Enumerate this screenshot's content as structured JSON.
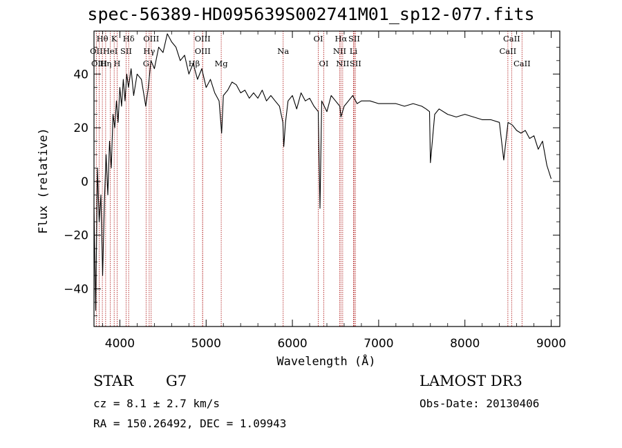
{
  "title": "spec-56389-HD095639S002741M01_sp12-077.fits",
  "info": {
    "class": "STAR",
    "subclass": "G7",
    "survey": "LAMOST DR3",
    "cz": "cz = 8.1 ± 2.7 km/s",
    "obs_date": "Obs-Date: 20130406",
    "radec": "RA = 150.26492, DEC =    1.09943"
  },
  "chart_data": {
    "type": "line",
    "title": "spec-56389-HD095639S002741M01_sp12-077.fits",
    "xlabel": "Wavelength (Å)",
    "ylabel": "Flux (relative)",
    "xlim": [
      3700,
      9100
    ],
    "ylim": [
      -54,
      56
    ],
    "xticks": [
      4000,
      5000,
      6000,
      7000,
      8000,
      9000
    ],
    "yticks": [
      -40,
      -20,
      0,
      20,
      40
    ],
    "series": [
      {
        "name": "spectrum",
        "x": [
          3700,
          3720,
          3740,
          3760,
          3780,
          3800,
          3820,
          3840,
          3860,
          3880,
          3900,
          3920,
          3940,
          3960,
          3980,
          4000,
          4020,
          4040,
          4060,
          4080,
          4100,
          4130,
          4160,
          4200,
          4250,
          4300,
          4330,
          4360,
          4400,
          4450,
          4500,
          4550,
          4600,
          4650,
          4700,
          4750,
          4800,
          4850,
          4900,
          4950,
          5000,
          5050,
          5100,
          5150,
          5180,
          5200,
          5250,
          5300,
          5350,
          5400,
          5450,
          5500,
          5550,
          5600,
          5650,
          5700,
          5750,
          5800,
          5850,
          5890,
          5900,
          5920,
          5950,
          6000,
          6050,
          6100,
          6150,
          6200,
          6250,
          6300,
          6320,
          6340,
          6400,
          6450,
          6500,
          6550,
          6563,
          6600,
          6650,
          6700,
          6750,
          6800,
          6900,
          7000,
          7100,
          7200,
          7300,
          7400,
          7500,
          7550,
          7590,
          7600,
          7650,
          7700,
          7800,
          7900,
          8000,
          8100,
          8200,
          8300,
          8400,
          8450,
          8500,
          8550,
          8600,
          8650,
          8700,
          8750,
          8800,
          8850,
          8900,
          8950,
          9000
        ],
        "y": [
          -10,
          -48,
          5,
          -15,
          -5,
          -35,
          -8,
          10,
          -5,
          15,
          5,
          25,
          20,
          30,
          22,
          35,
          28,
          38,
          30,
          40,
          35,
          42,
          32,
          40,
          38,
          28,
          35,
          45,
          42,
          50,
          48,
          55,
          52,
          50,
          45,
          47,
          40,
          44,
          38,
          42,
          35,
          38,
          33,
          30,
          18,
          32,
          34,
          37,
          36,
          33,
          34,
          31,
          33,
          31,
          34,
          30,
          32,
          30,
          28,
          22,
          13,
          22,
          30,
          32,
          27,
          33,
          30,
          31,
          28,
          26,
          -10,
          30,
          26,
          32,
          30,
          28,
          24,
          28,
          30,
          32,
          29,
          30,
          30,
          29,
          29,
          29,
          28,
          29,
          28,
          27,
          26,
          7,
          25,
          27,
          25,
          24,
          25,
          24,
          23,
          23,
          22,
          8,
          22,
          21,
          19,
          18,
          19,
          16,
          17,
          12,
          15,
          6,
          1
        ]
      }
    ],
    "lines": [
      {
        "label": "Hθ",
        "wave": 3797,
        "row": 0
      },
      {
        "label": "OII",
        "wave": 3727,
        "row": 1
      },
      {
        "label": "OIII",
        "wave": 3760,
        "row": 2
      },
      {
        "label": "Hη",
        "wave": 3835,
        "row": 2
      },
      {
        "label": "HeI",
        "wave": 3889,
        "row": 1
      },
      {
        "label": "K",
        "wave": 3934,
        "row": 0
      },
      {
        "label": "H",
        "wave": 3968,
        "row": 2
      },
      {
        "label": "SII",
        "wave": 4072,
        "row": 1
      },
      {
        "label": "Hδ",
        "wave": 4102,
        "row": 0
      },
      {
        "label": "OIII",
        "wave": 4363,
        "row": 0
      },
      {
        "label": "Hγ",
        "wave": 4340,
        "row": 1
      },
      {
        "label": "G",
        "wave": 4304,
        "row": 2
      },
      {
        "label": "OIII",
        "wave": 4959,
        "row": 0
      },
      {
        "label": "OIII",
        "wave": 4960,
        "row": 1
      },
      {
        "label": "Hβ",
        "wave": 4861,
        "row": 2
      },
      {
        "label": "Mg",
        "wave": 5175,
        "row": 2
      },
      {
        "label": "Na",
        "wave": 5893,
        "row": 1
      },
      {
        "label": "OI",
        "wave": 6300,
        "row": 0
      },
      {
        "label": "OI",
        "wave": 6364,
        "row": 2
      },
      {
        "label": "Hα",
        "wave": 6563,
        "row": 0
      },
      {
        "label": "SII",
        "wave": 6716,
        "row": 0
      },
      {
        "label": "NII",
        "wave": 6548,
        "row": 1
      },
      {
        "label": "Li",
        "wave": 6708,
        "row": 1
      },
      {
        "label": "NII",
        "wave": 6583,
        "row": 2
      },
      {
        "label": "SII",
        "wave": 6731,
        "row": 2
      },
      {
        "label": "CaII",
        "wave": 8542,
        "row": 0
      },
      {
        "label": "CaII",
        "wave": 8498,
        "row": 1
      },
      {
        "label": "CaII",
        "wave": 8662,
        "row": 2
      }
    ]
  }
}
